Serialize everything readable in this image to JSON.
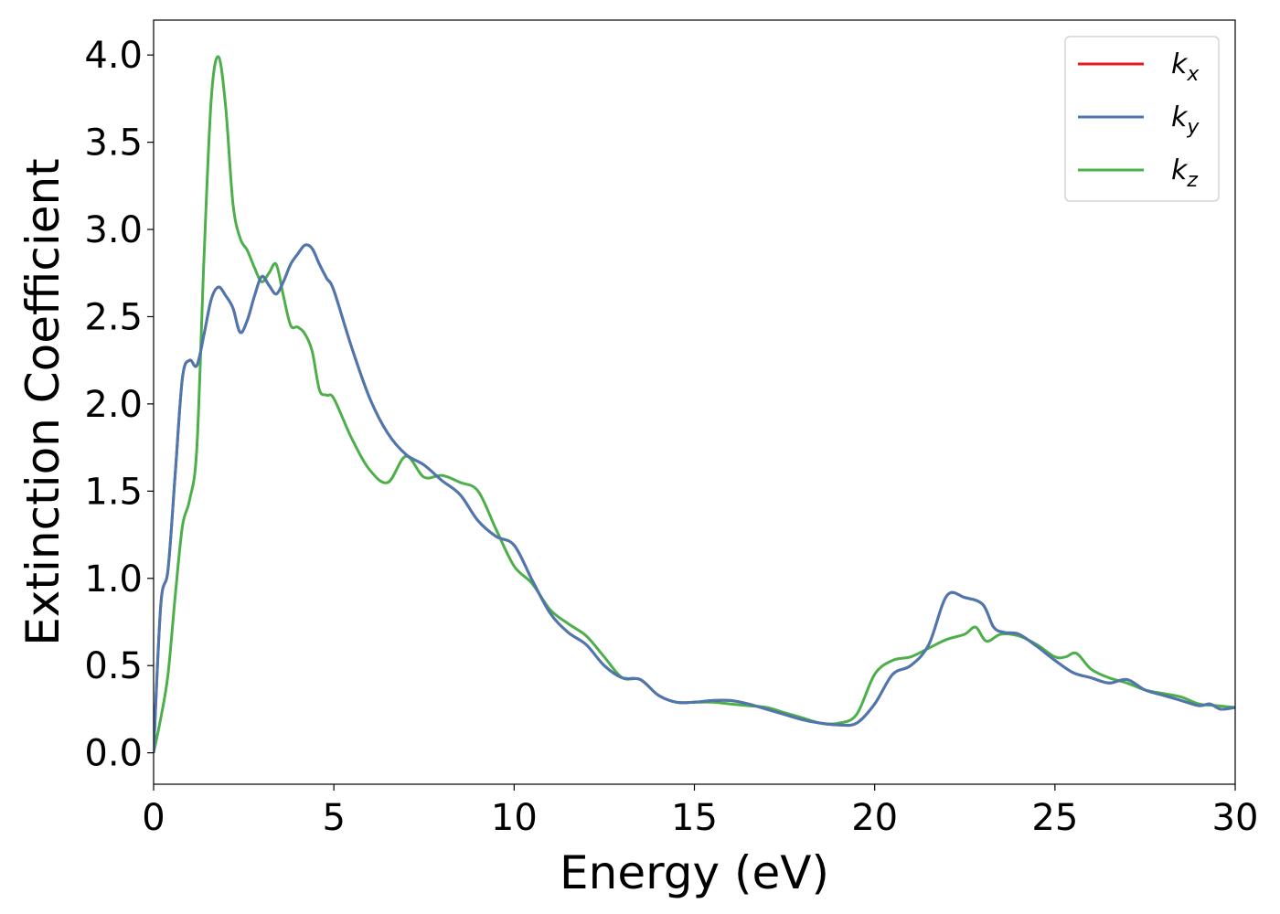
{
  "chart_data": {
    "type": "line",
    "title": "",
    "xlabel": "Energy (eV)",
    "ylabel": "Extinction Coefficient",
    "xlim": [
      0,
      30
    ],
    "ylim": [
      -0.18,
      4.2
    ],
    "xticks": [
      0,
      5,
      10,
      15,
      20,
      25,
      30
    ],
    "xtick_labels": [
      "0",
      "5",
      "10",
      "15",
      "20",
      "25",
      "30"
    ],
    "yticks": [
      0.0,
      0.5,
      1.0,
      1.5,
      2.0,
      2.5,
      3.0,
      3.5,
      4.0
    ],
    "ytick_labels": [
      "0.0",
      "0.5",
      "1.0",
      "1.5",
      "2.0",
      "2.5",
      "3.0",
      "3.5",
      "4.0"
    ],
    "grid": false,
    "legend_position": "top-right",
    "series": [
      {
        "name": "k",
        "subscript": "x",
        "color": "#e41a1c",
        "x": [
          0,
          0.2,
          0.4,
          0.6,
          0.8,
          1.0,
          1.2,
          1.4,
          1.6,
          1.8,
          2.0,
          2.2,
          2.4,
          2.6,
          2.8,
          3.0,
          3.2,
          3.4,
          3.6,
          3.8,
          4.0,
          4.2,
          4.4,
          4.6,
          4.8,
          5.0,
          5.5,
          6.0,
          6.5,
          7.0,
          7.5,
          8.0,
          8.5,
          9.0,
          9.5,
          10.0,
          10.5,
          11.0,
          11.5,
          12.0,
          12.5,
          13.0,
          13.5,
          14.0,
          14.5,
          15.0,
          15.5,
          16.0,
          16.5,
          17.0,
          17.5,
          18.0,
          18.5,
          19.0,
          19.5,
          20.0,
          20.5,
          21.0,
          21.5,
          22.0,
          22.5,
          23.0,
          23.3,
          23.6,
          24.0,
          24.5,
          25.0,
          25.5,
          26.0,
          26.5,
          27.0,
          27.5,
          28.0,
          28.5,
          29.0,
          29.3,
          29.6,
          30.0
        ],
        "y": [
          0.0,
          0.85,
          1.05,
          1.6,
          2.15,
          2.25,
          2.22,
          2.4,
          2.6,
          2.67,
          2.62,
          2.55,
          2.41,
          2.48,
          2.62,
          2.73,
          2.68,
          2.63,
          2.7,
          2.8,
          2.86,
          2.91,
          2.89,
          2.8,
          2.72,
          2.65,
          2.32,
          2.03,
          1.83,
          1.71,
          1.65,
          1.56,
          1.48,
          1.33,
          1.24,
          1.19,
          0.99,
          0.8,
          0.69,
          0.62,
          0.5,
          0.43,
          0.42,
          0.33,
          0.29,
          0.29,
          0.3,
          0.3,
          0.28,
          0.25,
          0.22,
          0.19,
          0.17,
          0.16,
          0.17,
          0.28,
          0.45,
          0.5,
          0.62,
          0.9,
          0.89,
          0.85,
          0.72,
          0.69,
          0.68,
          0.61,
          0.53,
          0.46,
          0.43,
          0.4,
          0.42,
          0.36,
          0.33,
          0.3,
          0.27,
          0.28,
          0.25,
          0.26
        ]
      },
      {
        "name": "k",
        "subscript": "y",
        "color": "#4a78b0",
        "x": [
          0,
          0.2,
          0.4,
          0.6,
          0.8,
          1.0,
          1.2,
          1.4,
          1.6,
          1.8,
          2.0,
          2.2,
          2.4,
          2.6,
          2.8,
          3.0,
          3.2,
          3.4,
          3.6,
          3.8,
          4.0,
          4.2,
          4.4,
          4.6,
          4.8,
          5.0,
          5.5,
          6.0,
          6.5,
          7.0,
          7.5,
          8.0,
          8.5,
          9.0,
          9.5,
          10.0,
          10.5,
          11.0,
          11.5,
          12.0,
          12.5,
          13.0,
          13.5,
          14.0,
          14.5,
          15.0,
          15.5,
          16.0,
          16.5,
          17.0,
          17.5,
          18.0,
          18.5,
          19.0,
          19.5,
          20.0,
          20.5,
          21.0,
          21.5,
          22.0,
          22.5,
          23.0,
          23.3,
          23.6,
          24.0,
          24.5,
          25.0,
          25.5,
          26.0,
          26.5,
          27.0,
          27.5,
          28.0,
          28.5,
          29.0,
          29.3,
          29.6,
          30.0
        ],
        "y": [
          0.0,
          0.85,
          1.05,
          1.6,
          2.15,
          2.25,
          2.22,
          2.4,
          2.6,
          2.67,
          2.62,
          2.55,
          2.41,
          2.48,
          2.62,
          2.73,
          2.68,
          2.63,
          2.7,
          2.8,
          2.86,
          2.91,
          2.89,
          2.8,
          2.72,
          2.65,
          2.32,
          2.03,
          1.83,
          1.71,
          1.65,
          1.56,
          1.48,
          1.33,
          1.24,
          1.19,
          0.99,
          0.8,
          0.69,
          0.62,
          0.5,
          0.43,
          0.42,
          0.33,
          0.29,
          0.29,
          0.3,
          0.3,
          0.28,
          0.25,
          0.22,
          0.19,
          0.17,
          0.16,
          0.17,
          0.28,
          0.45,
          0.5,
          0.62,
          0.9,
          0.89,
          0.85,
          0.72,
          0.69,
          0.68,
          0.61,
          0.53,
          0.46,
          0.43,
          0.4,
          0.42,
          0.36,
          0.33,
          0.3,
          0.27,
          0.28,
          0.25,
          0.26
        ]
      },
      {
        "name": "k",
        "subscript": "z",
        "color": "#4daf4a",
        "x": [
          0,
          0.2,
          0.4,
          0.6,
          0.8,
          1.0,
          1.2,
          1.4,
          1.6,
          1.8,
          2.0,
          2.2,
          2.4,
          2.6,
          2.8,
          3.0,
          3.2,
          3.4,
          3.6,
          3.8,
          4.0,
          4.2,
          4.4,
          4.6,
          4.8,
          5.0,
          5.5,
          6.0,
          6.5,
          7.0,
          7.5,
          8.0,
          8.5,
          9.0,
          9.5,
          10.0,
          10.5,
          11.0,
          11.5,
          12.0,
          12.5,
          13.0,
          13.5,
          14.0,
          14.5,
          15.0,
          15.5,
          16.0,
          16.5,
          17.0,
          17.5,
          18.0,
          18.5,
          19.0,
          19.5,
          20.0,
          20.5,
          21.0,
          21.5,
          22.0,
          22.5,
          22.8,
          23.1,
          23.5,
          24.0,
          24.5,
          25.0,
          25.3,
          25.6,
          26.0,
          26.5,
          27.0,
          27.5,
          28.0,
          28.5,
          29.0,
          29.5,
          30.0
        ],
        "y": [
          0.0,
          0.2,
          0.45,
          0.9,
          1.3,
          1.45,
          1.75,
          2.85,
          3.75,
          3.99,
          3.7,
          3.15,
          2.95,
          2.88,
          2.78,
          2.7,
          2.75,
          2.8,
          2.62,
          2.45,
          2.44,
          2.4,
          2.3,
          2.08,
          2.05,
          2.03,
          1.8,
          1.62,
          1.55,
          1.7,
          1.58,
          1.59,
          1.55,
          1.5,
          1.28,
          1.07,
          0.97,
          0.82,
          0.74,
          0.67,
          0.55,
          0.43,
          0.42,
          0.33,
          0.29,
          0.29,
          0.29,
          0.28,
          0.27,
          0.26,
          0.23,
          0.2,
          0.17,
          0.17,
          0.22,
          0.45,
          0.53,
          0.55,
          0.6,
          0.65,
          0.68,
          0.72,
          0.64,
          0.68,
          0.67,
          0.62,
          0.55,
          0.55,
          0.57,
          0.48,
          0.43,
          0.4,
          0.36,
          0.34,
          0.32,
          0.28,
          0.27,
          0.26
        ]
      }
    ]
  }
}
